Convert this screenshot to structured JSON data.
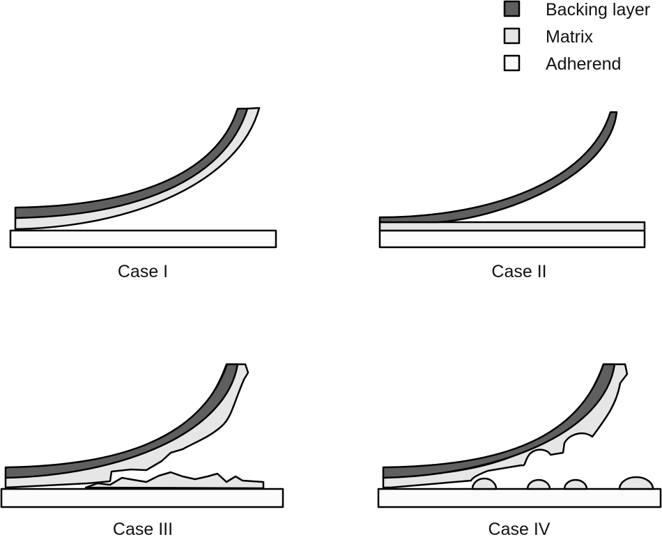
{
  "legend": {
    "items": [
      {
        "label": "Backing layer",
        "color": "#5f5f5f"
      },
      {
        "label": "Matrix",
        "color": "#e6e6e6"
      },
      {
        "label": "Adherend",
        "color": "#fbfbfb"
      }
    ]
  },
  "cases": [
    {
      "label": "Case I"
    },
    {
      "label": "Case II"
    },
    {
      "label": "Case III"
    },
    {
      "label": "Case IV"
    }
  ]
}
